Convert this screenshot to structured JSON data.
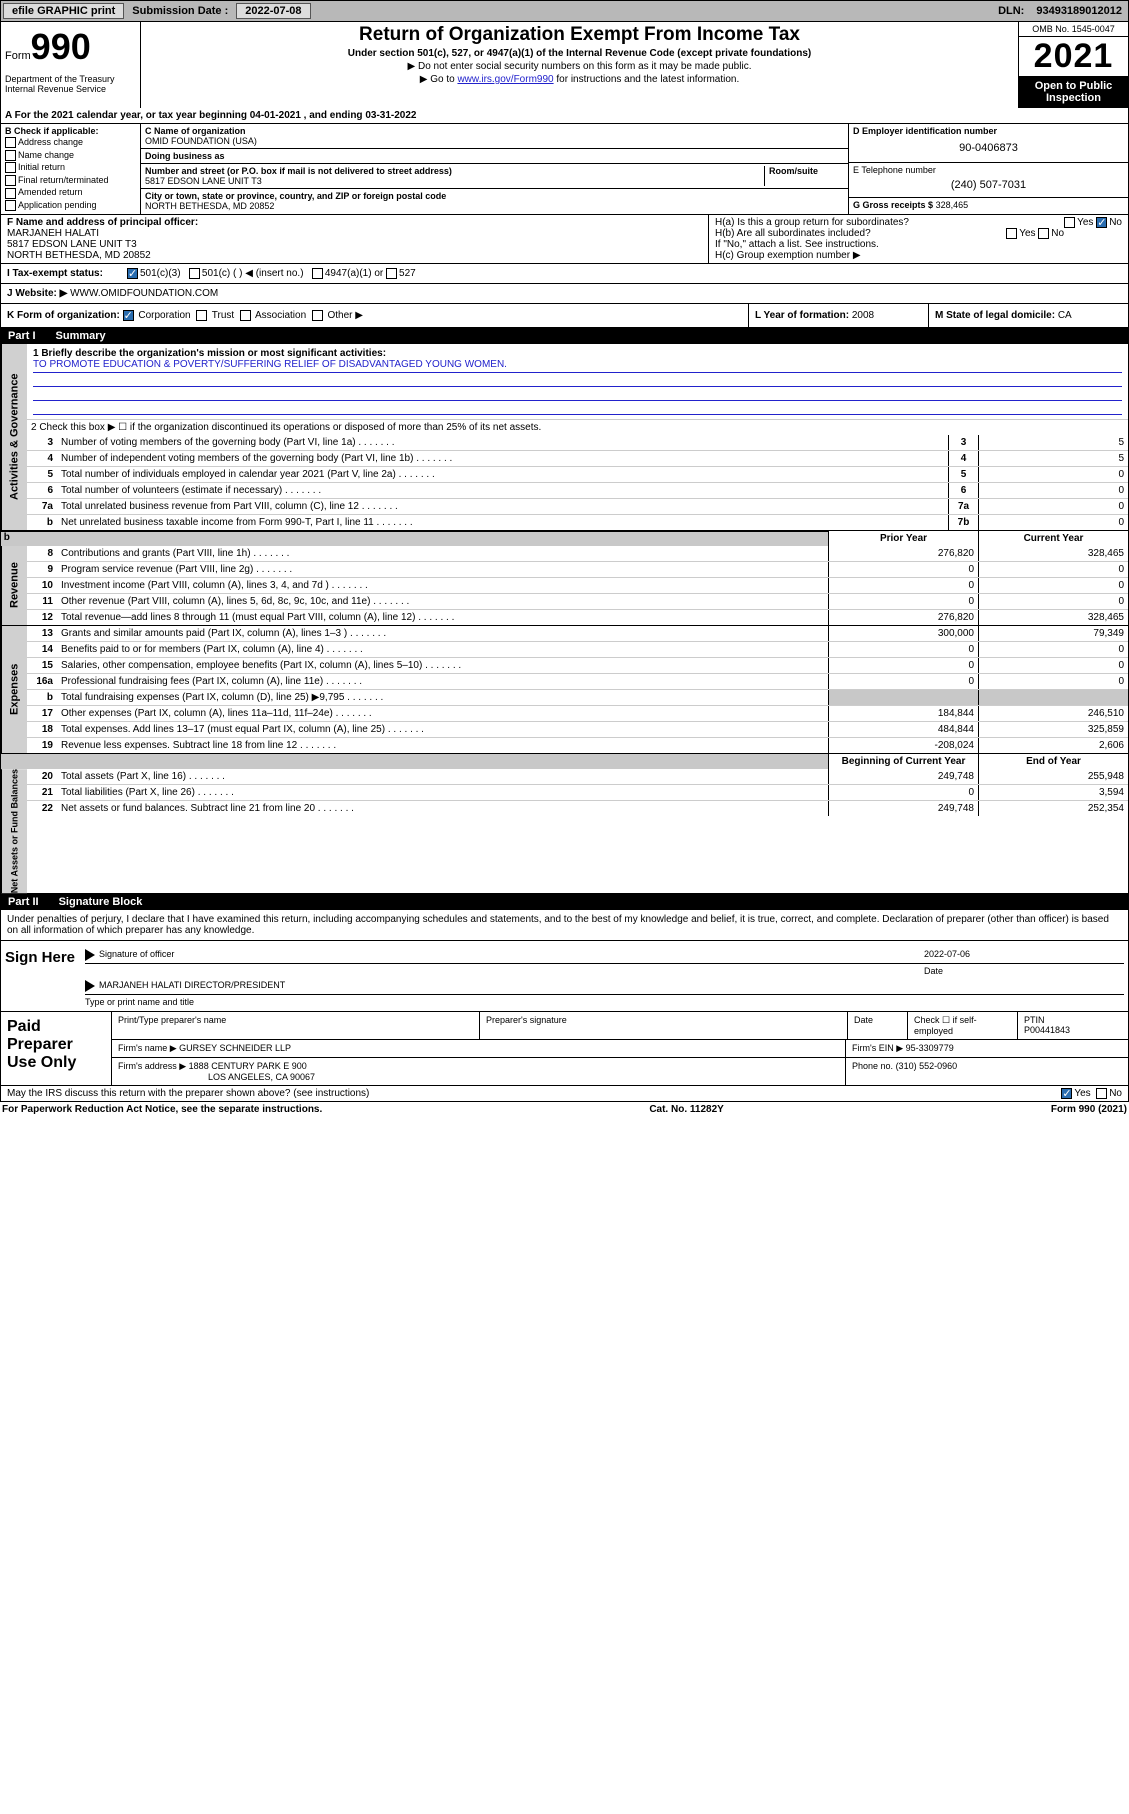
{
  "topbar": {
    "efile_label": "efile GRAPHIC print",
    "submission_label": "Submission Date :",
    "submission_date": "2022-07-08",
    "dln_label": "DLN:",
    "dln": "93493189012012"
  },
  "header": {
    "form_small": "Form",
    "form_num": "990",
    "title": "Return of Organization Exempt From Income Tax",
    "subtitle": "Under section 501(c), 527, or 4947(a)(1) of the Internal Revenue Code (except private foundations)",
    "line1": "▶ Do not enter social security numbers on this form as it may be made public.",
    "line2_pre": "▶ Go to ",
    "line2_link": "www.irs.gov/Form990",
    "line2_post": " for instructions and the latest information.",
    "omb": "OMB No. 1545-0047",
    "year": "2021",
    "open_public": "Open to Public Inspection",
    "dept": "Department of the Treasury",
    "irs": "Internal Revenue Service"
  },
  "lineA": "A For the 2021 calendar year, or tax year beginning 04-01-2021   , and ending 03-31-2022",
  "colB": {
    "label": "B Check if applicable:",
    "opts": [
      "Address change",
      "Name change",
      "Initial return",
      "Final return/terminated",
      "Amended return",
      "Application pending"
    ]
  },
  "colC": {
    "name_lbl": "C Name of organization",
    "name": "OMID FOUNDATION (USA)",
    "dba_lbl": "Doing business as",
    "addr_lbl": "Number and street (or P.O. box if mail is not delivered to street address)",
    "room_lbl": "Room/suite",
    "addr": "5817 EDSON LANE UNIT T3",
    "city_lbl": "City or town, state or province, country, and ZIP or foreign postal code",
    "city": "NORTH BETHESDA, MD  20852"
  },
  "colD": {
    "ein_lbl": "D Employer identification number",
    "ein": "90-0406873",
    "tel_lbl": "E Telephone number",
    "tel": "(240) 507-7031",
    "gross_lbl": "G Gross receipts $",
    "gross": "328,465"
  },
  "rowF": {
    "lbl": "F Name and address of principal officer:",
    "name": "MARJANEH HALATI",
    "addr1": "5817 EDSON LANE UNIT T3",
    "addr2": "NORTH BETHESDA, MD  20852"
  },
  "rowH": {
    "ha": "H(a)  Is this a group return for subordinates?",
    "hb": "H(b)  Are all subordinates included?",
    "hb_note": "If \"No,\" attach a list. See instructions.",
    "hc": "H(c)  Group exemption number ▶",
    "yes": "Yes",
    "no": "No"
  },
  "rowI": {
    "lbl": "I   Tax-exempt status:",
    "c3": "501(c)(3)",
    "c": "501(c) (  ) ◀ (insert no.)",
    "a1": "4947(a)(1) or",
    "s527": "527"
  },
  "rowJ": {
    "lbl": "J   Website: ▶",
    "val": "WWW.OMIDFOUNDATION.COM"
  },
  "rowK": {
    "lbl": "K Form of organization:",
    "corp": "Corporation",
    "trust": "Trust",
    "assoc": "Association",
    "other": "Other ▶",
    "yl": "L Year of formation:",
    "yv": "2008",
    "sl": "M State of legal domicile:",
    "sv": "CA"
  },
  "part1": {
    "num": "Part I",
    "title": "Summary"
  },
  "summary": {
    "q1_lbl": "1   Briefly describe the organization's mission or most significant activities:",
    "q1_val": "TO PROMOTE EDUCATION & POVERTY/SUFFERING RELIEF OF DISADVANTAGED YOUNG WOMEN.",
    "q2": "2   Check this box ▶ ☐  if the organization discontinued its operations or disposed of more than 25% of its net assets.",
    "gov_lines": [
      {
        "n": "3",
        "t": "Number of voting members of the governing body (Part VI, line 1a)",
        "bn": "3",
        "v": "5"
      },
      {
        "n": "4",
        "t": "Number of independent voting members of the governing body (Part VI, line 1b)",
        "bn": "4",
        "v": "5"
      },
      {
        "n": "5",
        "t": "Total number of individuals employed in calendar year 2021 (Part V, line 2a)",
        "bn": "5",
        "v": "0"
      },
      {
        "n": "6",
        "t": "Total number of volunteers (estimate if necessary)",
        "bn": "6",
        "v": "0"
      },
      {
        "n": "7a",
        "t": "Total unrelated business revenue from Part VIII, column (C), line 12",
        "bn": "7a",
        "v": "0"
      },
      {
        "n": "b",
        "t": "Net unrelated business taxable income from Form 990-T, Part I, line 11",
        "bn": "7b",
        "v": "0"
      }
    ],
    "two_col_hdr": {
      "c1": "Prior Year",
      "c2": "Current Year"
    },
    "rev_lines": [
      {
        "n": "8",
        "t": "Contributions and grants (Part VIII, line 1h)",
        "p": "276,820",
        "c": "328,465"
      },
      {
        "n": "9",
        "t": "Program service revenue (Part VIII, line 2g)",
        "p": "0",
        "c": "0"
      },
      {
        "n": "10",
        "t": "Investment income (Part VIII, column (A), lines 3, 4, and 7d )",
        "p": "0",
        "c": "0"
      },
      {
        "n": "11",
        "t": "Other revenue (Part VIII, column (A), lines 5, 6d, 8c, 9c, 10c, and 11e)",
        "p": "0",
        "c": "0"
      },
      {
        "n": "12",
        "t": "Total revenue—add lines 8 through 11 (must equal Part VIII, column (A), line 12)",
        "p": "276,820",
        "c": "328,465"
      }
    ],
    "exp_lines": [
      {
        "n": "13",
        "t": "Grants and similar amounts paid (Part IX, column (A), lines 1–3 )",
        "p": "300,000",
        "c": "79,349"
      },
      {
        "n": "14",
        "t": "Benefits paid to or for members (Part IX, column (A), line 4)",
        "p": "0",
        "c": "0"
      },
      {
        "n": "15",
        "t": "Salaries, other compensation, employee benefits (Part IX, column (A), lines 5–10)",
        "p": "0",
        "c": "0"
      },
      {
        "n": "16a",
        "t": "Professional fundraising fees (Part IX, column (A), line 11e)",
        "p": "0",
        "c": "0"
      },
      {
        "n": "b",
        "t": "Total fundraising expenses (Part IX, column (D), line 25) ▶9,795",
        "p": "",
        "c": "",
        "gray": true
      },
      {
        "n": "17",
        "t": "Other expenses (Part IX, column (A), lines 11a–11d, 11f–24e)",
        "p": "184,844",
        "c": "246,510"
      },
      {
        "n": "18",
        "t": "Total expenses. Add lines 13–17 (must equal Part IX, column (A), line 25)",
        "p": "484,844",
        "c": "325,859"
      },
      {
        "n": "19",
        "t": "Revenue less expenses. Subtract line 18 from line 12",
        "p": "-208,024",
        "c": "2,606"
      }
    ],
    "na_hdr": {
      "c1": "Beginning of Current Year",
      "c2": "End of Year"
    },
    "na_lines": [
      {
        "n": "20",
        "t": "Total assets (Part X, line 16)",
        "p": "249,748",
        "c": "255,948"
      },
      {
        "n": "21",
        "t": "Total liabilities (Part X, line 26)",
        "p": "0",
        "c": "3,594"
      },
      {
        "n": "22",
        "t": "Net assets or fund balances. Subtract line 21 from line 20",
        "p": "249,748",
        "c": "252,354"
      }
    ],
    "vlabels": {
      "gov": "Activities & Governance",
      "rev": "Revenue",
      "exp": "Expenses",
      "na": "Net Assets or Fund Balances"
    }
  },
  "part2": {
    "num": "Part II",
    "title": "Signature Block",
    "decl": "Under penalties of perjury, I declare that I have examined this return, including accompanying schedules and statements, and to the best of my knowledge and belief, it is true, correct, and complete. Declaration of preparer (other than officer) is based on all information of which preparer has any knowledge."
  },
  "sign": {
    "here": "Sign Here",
    "sig_lbl": "Signature of officer",
    "date_lbl": "Date",
    "date": "2022-07-06",
    "name": "MARJANEH HALATI  DIRECTOR/PRESIDENT",
    "name_lbl": "Type or print name and title"
  },
  "paid": {
    "hdr": "Paid Preparer Use Only",
    "p_name_lbl": "Print/Type preparer's name",
    "p_sig_lbl": "Preparer's signature",
    "p_date_lbl": "Date",
    "check_lbl": "Check ☐ if self-employed",
    "ptin_lbl": "PTIN",
    "ptin": "P00441843",
    "firm_name_lbl": "Firm's name    ▶",
    "firm_name": "GURSEY SCHNEIDER LLP",
    "firm_ein_lbl": "Firm's EIN ▶",
    "firm_ein": "95-3309779",
    "firm_addr_lbl": "Firm's address ▶",
    "firm_addr1": "1888 CENTURY PARK E 900",
    "firm_addr2": "LOS ANGELES, CA  90067",
    "phone_lbl": "Phone no.",
    "phone": "(310) 552-0960"
  },
  "footer": {
    "discuss": "May the IRS discuss this return with the preparer shown above? (see instructions)",
    "yes": "Yes",
    "no": "No",
    "pra": "For Paperwork Reduction Act Notice, see the separate instructions.",
    "cat": "Cat. No. 11282Y",
    "form": "Form 990 (2021)"
  },
  "colors": {
    "link": "#2222cc",
    "check_bg": "#2a6db0"
  }
}
